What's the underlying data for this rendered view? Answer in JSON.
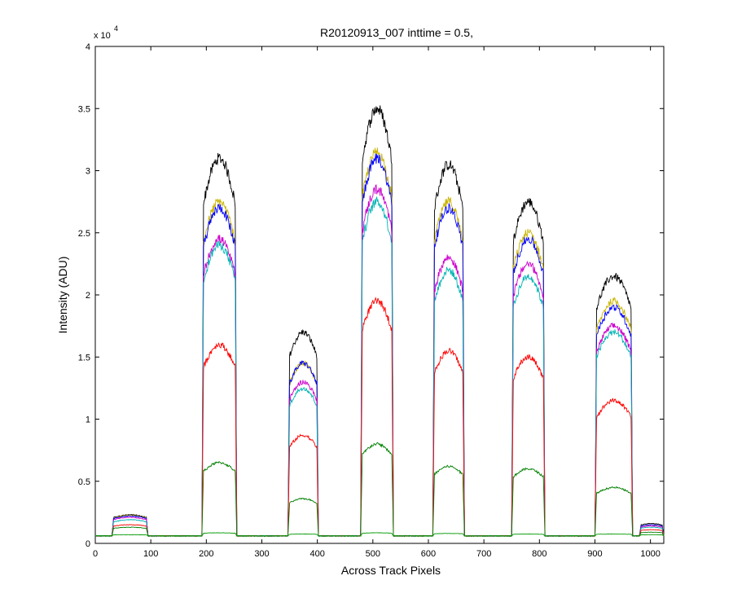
{
  "chart_data": {
    "type": "line",
    "title": "R20120913_007 inttime = 0.5,",
    "xlabel": "Across Track Pixels",
    "ylabel": "Intensity (ADU)",
    "y_exponent_label": "x 10",
    "y_exponent_power": "4",
    "xlim": [
      0,
      1024
    ],
    "ylim": [
      0,
      40000
    ],
    "xticks": [
      0,
      100,
      200,
      300,
      400,
      500,
      600,
      700,
      800,
      900,
      1000
    ],
    "yticks": [
      0,
      5000,
      10000,
      15000,
      20000,
      25000,
      30000,
      35000,
      40000
    ],
    "ytick_labels": [
      "0",
      "0.5",
      "1",
      "1.5",
      "2",
      "2.5",
      "3",
      "3.5",
      "4"
    ],
    "grid": false,
    "legend": "none",
    "baseline": 600,
    "regions": [
      {
        "x_start": 30,
        "x_end": 95
      },
      {
        "x_start": 192,
        "x_end": 255
      },
      {
        "x_start": 347,
        "x_end": 402
      },
      {
        "x_start": 478,
        "x_end": 537
      },
      {
        "x_start": 608,
        "x_end": 665
      },
      {
        "x_start": 750,
        "x_end": 810
      },
      {
        "x_start": 900,
        "x_end": 968
      },
      {
        "x_start": 980,
        "x_end": 1024
      }
    ],
    "series": [
      {
        "color": "#000000",
        "region_peaks": [
          2300,
          31000,
          17000,
          35000,
          30500,
          27500,
          21500,
          1600
        ]
      },
      {
        "color": "#c8b400",
        "region_peaks": [
          2250,
          27500,
          14500,
          31500,
          27500,
          25000,
          19500,
          1500
        ]
      },
      {
        "color": "#0000ff",
        "region_peaks": [
          2200,
          27000,
          14500,
          31000,
          27000,
          24500,
          19000,
          1500
        ]
      },
      {
        "color": "#cc00cc",
        "region_peaks": [
          2100,
          24500,
          13000,
          28500,
          23000,
          22500,
          17500,
          1400
        ]
      },
      {
        "color": "#00b4b4",
        "region_peaks": [
          1900,
          24000,
          12500,
          27500,
          22000,
          21500,
          17000,
          1300
        ]
      },
      {
        "color": "#ff0000",
        "region_peaks": [
          1500,
          16000,
          8700,
          19500,
          15500,
          15000,
          11500,
          1100
        ]
      },
      {
        "color": "#007f00",
        "region_peaks": [
          1300,
          6500,
          3600,
          8000,
          6200,
          6000,
          4500,
          900
        ]
      },
      {
        "color": "#009900",
        "region_peaks": [
          700,
          850,
          750,
          850,
          800,
          750,
          750,
          700
        ]
      }
    ]
  }
}
